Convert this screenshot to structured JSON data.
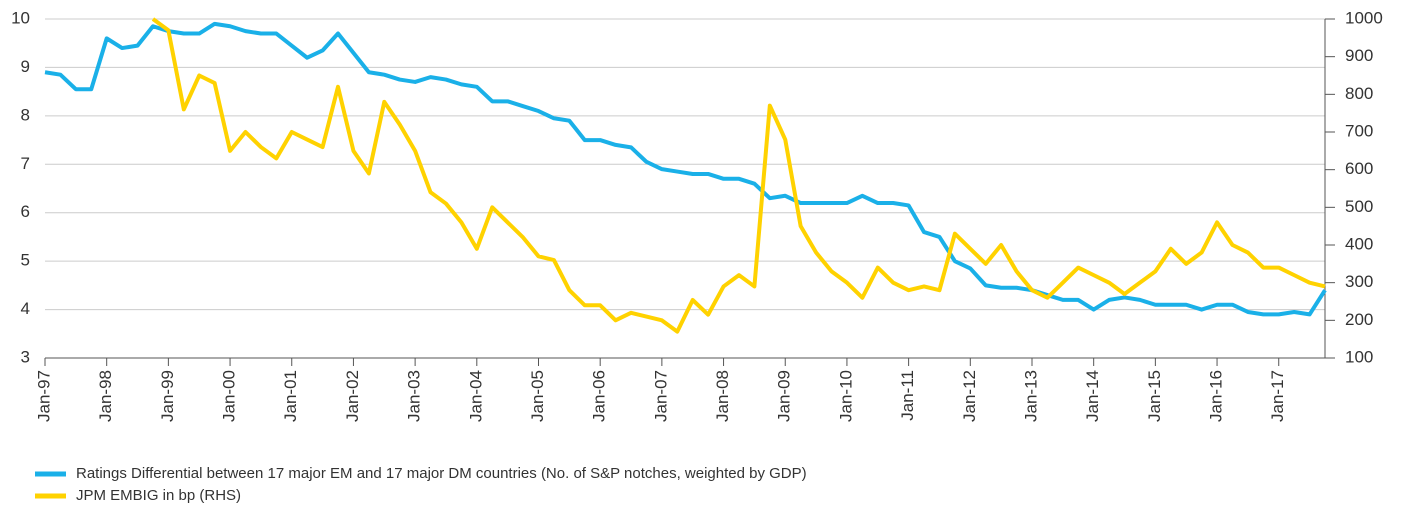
{
  "chart_data": {
    "type": "line",
    "categories": [
      "Jan-97",
      null,
      null,
      null,
      "Jan-98",
      null,
      null,
      null,
      "Jan-99",
      null,
      null,
      null,
      "Jan-00",
      null,
      null,
      null,
      "Jan-01",
      null,
      null,
      null,
      "Jan-02",
      null,
      null,
      null,
      "Jan-03",
      null,
      null,
      null,
      "Jan-04",
      null,
      null,
      null,
      "Jan-05",
      null,
      null,
      null,
      "Jan-06",
      null,
      null,
      null,
      "Jan-07",
      null,
      null,
      null,
      "Jan-08",
      null,
      null,
      null,
      "Jan-09",
      null,
      null,
      null,
      "Jan-10",
      null,
      null,
      null,
      "Jan-11",
      null,
      null,
      null,
      "Jan-12",
      null,
      null,
      null,
      "Jan-13",
      null,
      null,
      null,
      "Jan-14",
      null,
      null,
      null,
      "Jan-15",
      null,
      null,
      null,
      "Jan-16",
      null,
      null,
      null,
      "Jan-17",
      null,
      null,
      null
    ],
    "series": [
      {
        "name": "Ratings Differential between 17 major EM and 17 major DM countries (No. of S&P notches, weighted by GDP)",
        "color": "#1ab0e8",
        "values": [
          8.9,
          8.85,
          8.55,
          8.55,
          9.6,
          9.4,
          9.45,
          9.85,
          9.75,
          9.7,
          9.7,
          9.9,
          9.85,
          9.75,
          9.7,
          9.7,
          9.45,
          9.2,
          9.35,
          9.7,
          9.3,
          8.9,
          8.85,
          8.75,
          8.7,
          8.8,
          8.75,
          8.65,
          8.6,
          8.3,
          8.3,
          8.2,
          8.1,
          7.95,
          7.9,
          7.5,
          7.5,
          7.4,
          7.35,
          7.05,
          6.9,
          6.85,
          6.8,
          6.8,
          6.7,
          6.7,
          6.6,
          6.3,
          6.35,
          6.2,
          6.2,
          6.2,
          6.2,
          6.35,
          6.2,
          6.2,
          6.15,
          5.6,
          5.5,
          5.0,
          4.85,
          4.5,
          4.45,
          4.45,
          4.4,
          4.3,
          4.2,
          4.2,
          4.0,
          4.2,
          4.25,
          4.2,
          4.1,
          4.1,
          4.1,
          4.0,
          4.1,
          4.1,
          3.95,
          3.9,
          3.9,
          3.95,
          3.9,
          4.4
        ]
      },
      {
        "name": "JPM EMBIG in bp (RHS)",
        "color": "#ffd200",
        "axis": "y2",
        "values": [
          null,
          null,
          null,
          null,
          null,
          null,
          null,
          1000,
          970,
          760,
          850,
          830,
          650,
          700,
          660,
          630,
          700,
          680,
          660,
          820,
          650,
          590,
          780,
          720,
          650,
          540,
          510,
          460,
          390,
          500,
          460,
          420,
          370,
          360,
          280,
          240,
          240,
          200,
          220,
          210,
          200,
          170,
          254,
          215,
          290,
          320,
          290,
          770,
          680,
          450,
          380,
          330,
          300,
          260,
          340,
          300,
          280,
          290,
          280,
          430,
          390,
          350,
          400,
          330,
          280,
          260,
          300,
          340,
          320,
          300,
          270,
          300,
          330,
          390,
          350,
          380,
          460,
          400,
          380,
          340,
          340,
          320,
          300,
          290
        ]
      }
    ],
    "ylim": [
      3,
      10
    ],
    "yticks": [
      3,
      4,
      5,
      6,
      7,
      8,
      9,
      10
    ],
    "y2lim": [
      100,
      1000
    ],
    "y2ticks": [
      100,
      200,
      300,
      400,
      500,
      600,
      700,
      800,
      900,
      1000
    ],
    "grid": true
  }
}
